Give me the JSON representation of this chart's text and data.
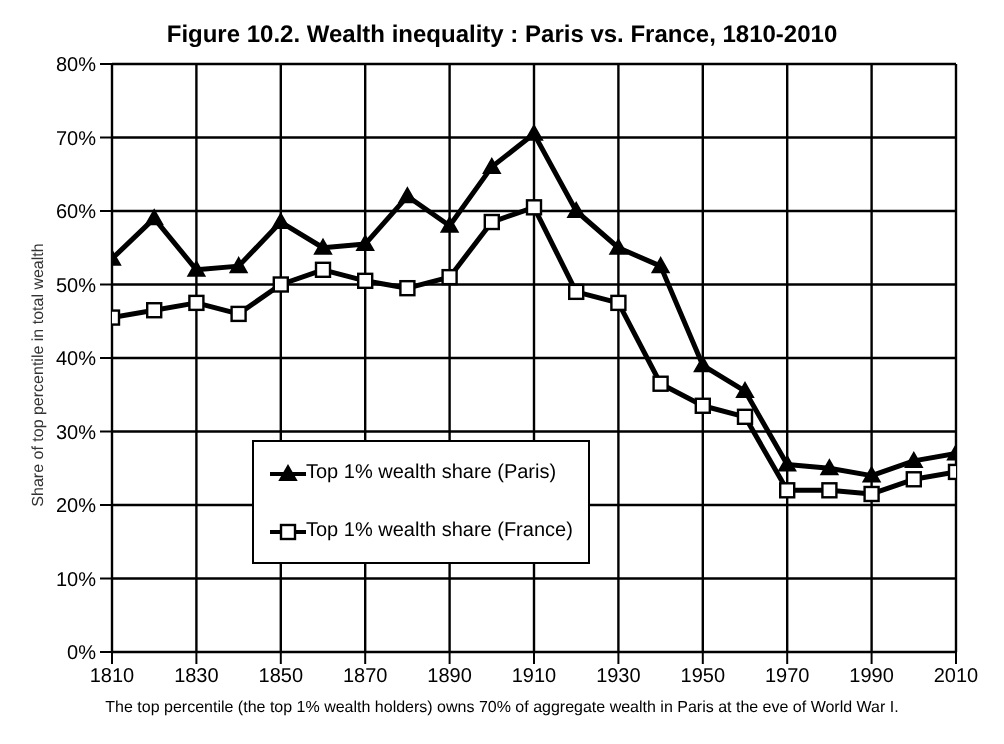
{
  "chart_data": {
    "type": "line",
    "title": "Figure 10.2. Wealth inequality : Paris vs. France, 1810-2010",
    "ylabel": "Share of top percentile in total wealth",
    "annotations": [
      "The top percentile (the top 1% wealth holders) owns 70% of aggregate wealth in Paris at the eve of World War I."
    ],
    "x": [
      1810,
      1820,
      1830,
      1840,
      1850,
      1860,
      1870,
      1880,
      1890,
      1900,
      1910,
      1920,
      1930,
      1940,
      1950,
      1960,
      1970,
      1980,
      1990,
      2000,
      2010
    ],
    "series": [
      {
        "name": "Top 1% wealth share (Paris)",
        "color": "#000000",
        "marker": "triangle",
        "values": [
          53.5,
          59,
          52,
          52.5,
          58.5,
          55,
          55.5,
          62,
          58,
          66,
          70.5,
          60,
          55,
          52.5,
          39,
          35.5,
          25.5,
          25,
          24,
          26,
          27
        ]
      },
      {
        "name": "Top 1% wealth share (France)",
        "color": "#000000",
        "marker": "square",
        "values": [
          45.5,
          46.5,
          47.5,
          46,
          50,
          52,
          50.5,
          49.5,
          51,
          58.5,
          60.5,
          49,
          47.5,
          36.5,
          33.5,
          32,
          22,
          22,
          21.5,
          23.5,
          24.5
        ]
      }
    ],
    "xlim": [
      1810,
      2010
    ],
    "xticks": [
      1810,
      1830,
      1850,
      1870,
      1890,
      1910,
      1930,
      1950,
      1970,
      1990,
      2010
    ],
    "ylim": [
      0,
      80
    ],
    "yticks": [
      {
        "value": 0,
        "label": "0%"
      },
      {
        "value": 10,
        "label": "10%"
      },
      {
        "value": 20,
        "label": "20%"
      },
      {
        "value": 30,
        "label": "30%"
      },
      {
        "value": 40,
        "label": "40%"
      },
      {
        "value": 50,
        "label": "50%"
      },
      {
        "value": 60,
        "label": "60%"
      },
      {
        "value": 70,
        "label": "70%"
      },
      {
        "value": 80,
        "label": "80%"
      }
    ],
    "grid": true,
    "legend": "left",
    "line_style": "solid"
  }
}
